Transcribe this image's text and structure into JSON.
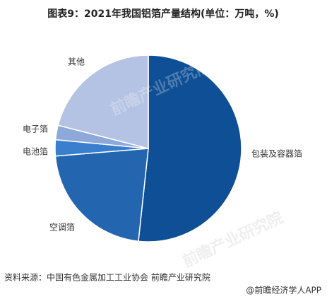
{
  "chart_data": {
    "type": "pie",
    "title": "图表9：2021年我国铝箔产量结构(单位：万吨，%)",
    "categories": [
      "包装及容器箔",
      "空调箔",
      "电池箔",
      "电子箔",
      "其他"
    ],
    "values": [
      51.7,
      22,
      2.8,
      2.5,
      21
    ],
    "colors": [
      "#0e4f95",
      "#2465b0",
      "#3a7fce",
      "#8ea8d9",
      "#b4c3e3"
    ],
    "source": "资料来源：中国有色金属加工工业协会 前瞻产业研究院",
    "footer": "@前瞻经济学人APP",
    "watermark": "前瞻产业研究院"
  }
}
